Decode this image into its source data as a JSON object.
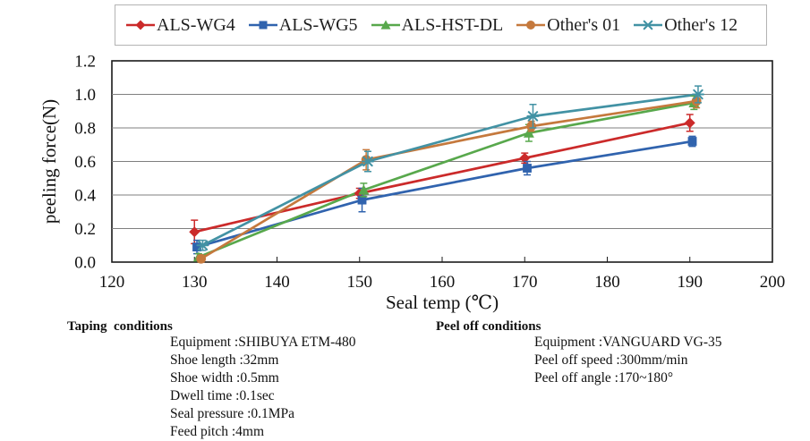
{
  "chart_data": {
    "type": "line",
    "title": "",
    "xlabel": "Seal temp (℃)",
    "ylabel": "peeling force(N)",
    "xlim": [
      120,
      200
    ],
    "ylim": [
      0,
      1.2
    ],
    "x_ticks": [
      "120",
      "130",
      "140",
      "150",
      "160",
      "170",
      "180",
      "190",
      "200"
    ],
    "y_ticks": [
      "0.0",
      "0.2",
      "0.4",
      "0.6",
      "0.8",
      "1.0",
      "1.2"
    ],
    "grid": "horizontal",
    "legend_position": "top",
    "x": [
      130,
      150,
      170,
      190
    ],
    "series": [
      {
        "name": "ALS-WG4",
        "marker": "diamond",
        "color": "#cb2a2a",
        "x_offset": 0,
        "values": [
          0.18,
          0.41,
          0.62,
          0.83
        ],
        "errors": [
          0.07,
          0.03,
          0.03,
          0.05
        ]
      },
      {
        "name": "ALS-WG5",
        "marker": "square",
        "color": "#3063ae",
        "x_offset": 0.3,
        "values": [
          0.09,
          0.37,
          0.56,
          0.72
        ],
        "errors": [
          0.04,
          0.07,
          0.04,
          0.03
        ]
      },
      {
        "name": "ALS-HST-DL",
        "marker": "triangle",
        "color": "#58a84c",
        "x_offset": 0.5,
        "values": [
          0.03,
          0.43,
          0.77,
          0.95
        ],
        "errors": [
          0.02,
          0.04,
          0.05,
          0.04
        ]
      },
      {
        "name": "Other's 01",
        "marker": "circle",
        "color": "#c5793d",
        "x_offset": 0.8,
        "values": [
          0.02,
          0.61,
          0.81,
          0.96
        ],
        "errors": [
          0.02,
          0.06,
          0.03,
          0.04
        ]
      },
      {
        "name": "Other's 12",
        "marker": "asterisk",
        "color": "#4292a4",
        "x_offset": 1.0,
        "values": [
          0.1,
          0.6,
          0.87,
          1.0
        ],
        "errors": [
          0.03,
          0.06,
          0.07,
          0.05
        ]
      }
    ],
    "colors": {
      "gridline": "#7f7f7f",
      "axis": "#1a1a1a",
      "legend_border": "#b3b3b3"
    }
  },
  "notes": {
    "taping": {
      "title": "Taping  conditions",
      "items": [
        "Equipment :SHIBUYA ETM-480",
        "Shoe length :32mm",
        "Shoe width :0.5mm",
        "Dwell time :0.1sec",
        "Seal pressure :0.1MPa",
        "Feed pitch :4mm"
      ]
    },
    "peel": {
      "title": "Peel off conditions",
      "items": [
        "Equipment :VANGUARD VG-35",
        "Peel off speed :300mm/min",
        "Peel off angle :170~180°"
      ]
    }
  }
}
